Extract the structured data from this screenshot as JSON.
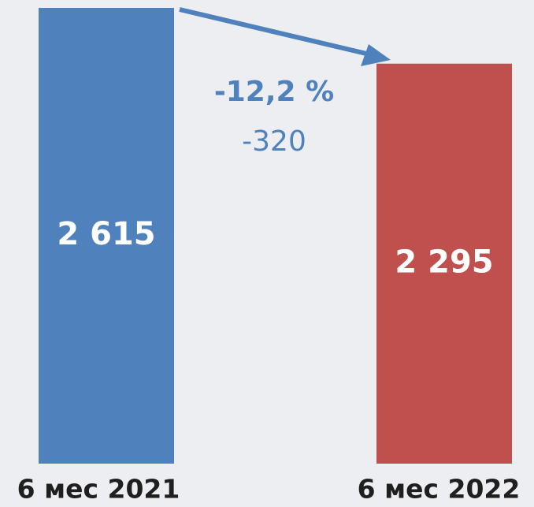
{
  "chart_data": {
    "type": "bar",
    "categories": [
      "6 мес 2021",
      "6 мес 2022"
    ],
    "values": [
      2615,
      2295
    ],
    "value_labels": [
      "2 615",
      "2 295"
    ],
    "colors": [
      "#4f81bd",
      "#c0504d"
    ],
    "annotations": [
      "-12,2 %",
      "-320"
    ]
  }
}
